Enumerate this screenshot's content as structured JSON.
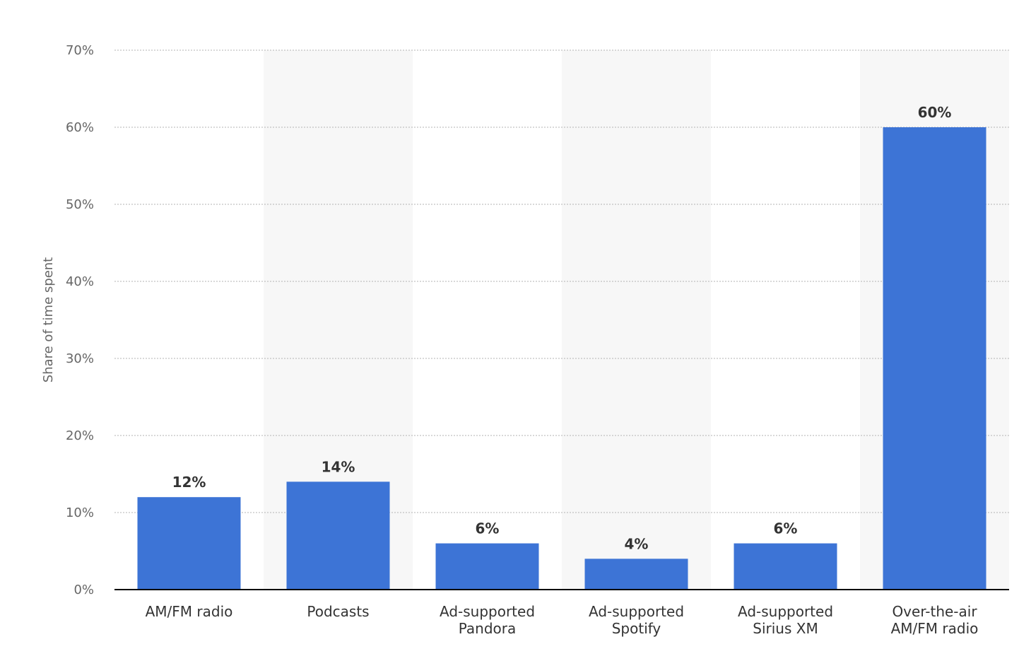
{
  "chart_data": {
    "type": "bar",
    "title": "",
    "xlabel": "",
    "ylabel": "Share of time spent",
    "ylim": [
      0,
      70
    ],
    "yticks": [
      0,
      10,
      20,
      30,
      40,
      50,
      60,
      70
    ],
    "y_tick_suffix": "%",
    "grid": true,
    "categories": [
      [
        "AM/FM radio"
      ],
      [
        "Podcasts"
      ],
      [
        "Ad-supported",
        "Pandora"
      ],
      [
        "Ad-supported",
        "Spotify"
      ],
      [
        "Ad-supported",
        "Sirius XM"
      ],
      [
        "Over-the-air",
        "AM/FM radio"
      ]
    ],
    "values": [
      12,
      14,
      6,
      4,
      6,
      60
    ],
    "data_labels": [
      "12%",
      "14%",
      "6%",
      "4%",
      "6%",
      "60%"
    ],
    "colors": {
      "bar": "#3d74d6",
      "band": "#f7f7f7",
      "grid": "#b3b3b3",
      "axis": "#000000"
    }
  }
}
